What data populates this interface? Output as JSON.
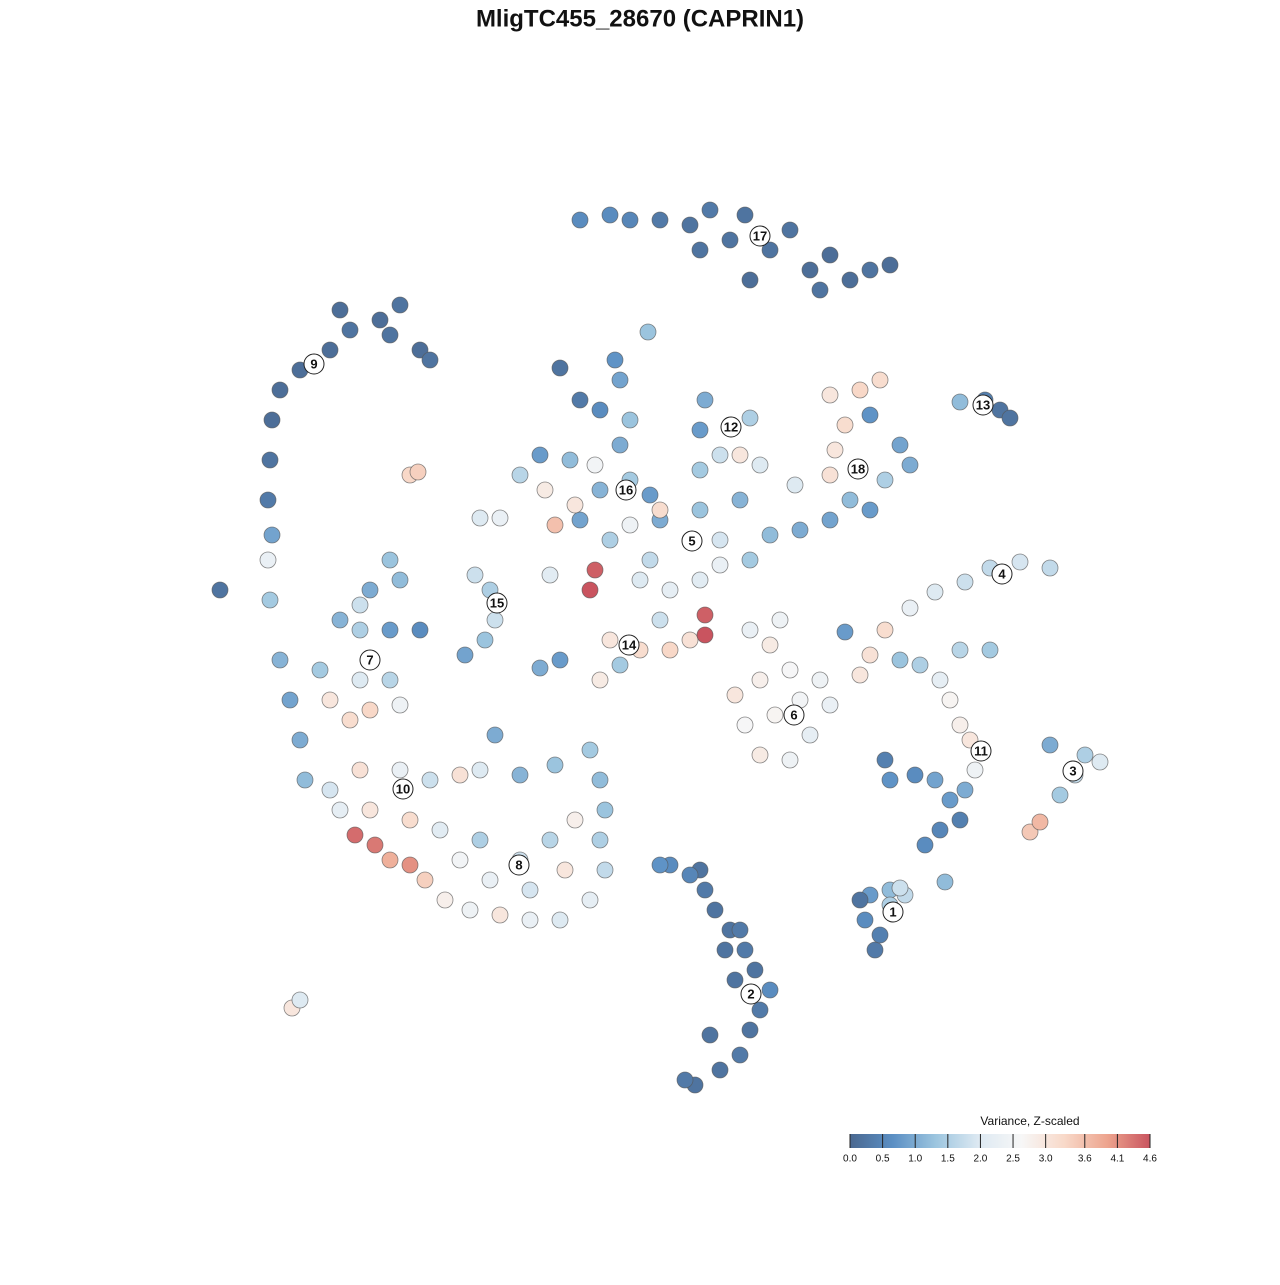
{
  "chart_data": {
    "type": "scatter",
    "title": "MligTC455_28670 (CAPRIN1)",
    "xlim": [
      0,
      1280
    ],
    "ylim": [
      1280,
      0
    ],
    "x": [
      695,
      720,
      740,
      750,
      760,
      770,
      755,
      745,
      730,
      715,
      705,
      700,
      670,
      685,
      710,
      735,
      740,
      725,
      690,
      660,
      875,
      880,
      865,
      870,
      890,
      905,
      860,
      945,
      890,
      900,
      925,
      940,
      960,
      950,
      935,
      915,
      890,
      885,
      965,
      975,
      970,
      960,
      950,
      940,
      920,
      900,
      960,
      990,
      1030,
      1040,
      1060,
      1075,
      1100,
      1050,
      1085,
      860,
      870,
      885,
      910,
      935,
      965,
      990,
      1020,
      1050,
      845,
      760,
      790,
      810,
      745,
      775,
      800,
      830,
      735,
      760,
      790,
      820,
      770,
      750,
      780,
      600,
      620,
      640,
      670,
      690,
      705,
      705,
      610,
      540,
      560,
      590,
      595,
      660,
      640,
      670,
      700,
      720,
      650,
      690,
      720,
      750,
      770,
      660,
      700,
      740,
      610,
      630,
      660,
      580,
      600,
      630,
      650,
      545,
      520,
      540,
      570,
      595,
      620,
      630,
      600,
      580,
      560,
      620,
      615,
      648,
      555,
      575,
      700,
      720,
      740,
      760,
      700,
      730,
      750,
      705,
      800,
      830,
      850,
      870,
      885,
      830,
      835,
      845,
      830,
      860,
      880,
      870,
      900,
      910,
      795,
      960,
      985,
      1000,
      1010,
      580,
      610,
      630,
      660,
      690,
      710,
      730,
      750,
      770,
      790,
      810,
      830,
      850,
      870,
      890,
      820,
      745,
      700,
      220,
      270,
      268,
      272,
      268,
      270,
      272,
      280,
      300,
      330,
      350,
      340,
      380,
      400,
      390,
      420,
      430,
      305,
      300,
      290,
      280,
      320,
      330,
      350,
      370,
      360,
      390,
      400,
      340,
      360,
      390,
      420,
      370,
      400,
      390,
      360,
      355,
      375,
      390,
      410,
      425,
      445,
      470,
      500,
      530,
      560,
      590,
      605,
      600,
      605,
      600,
      590,
      555,
      520,
      480,
      460,
      430,
      400,
      360,
      340,
      330,
      370,
      410,
      440,
      480,
      520,
      550,
      575,
      490,
      460,
      530,
      565,
      495,
      465,
      485,
      495,
      490,
      475,
      480,
      500,
      550,
      292,
      300,
      410,
      418
    ],
    "y": [
      195,
      210,
      225,
      250,
      270,
      290,
      310,
      330,
      350,
      370,
      390,
      410,
      415,
      200,
      245,
      300,
      350,
      330,
      405,
      415,
      330,
      345,
      360,
      385,
      390,
      385,
      380,
      398,
      375,
      392,
      435,
      450,
      460,
      480,
      500,
      505,
      500,
      520,
      490,
      510,
      540,
      555,
      580,
      600,
      615,
      620,
      630,
      630,
      448,
      458,
      485,
      505,
      518,
      535,
      525,
      605,
      625,
      650,
      672,
      688,
      698,
      712,
      718,
      712,
      648,
      525,
      520,
      545,
      555,
      565,
      580,
      575,
      585,
      600,
      610,
      600,
      635,
      650,
      660,
      600,
      615,
      630,
      630,
      640,
      645,
      665,
      640,
      612,
      620,
      690,
      710,
      660,
      700,
      690,
      700,
      715,
      720,
      740,
      740,
      720,
      745,
      760,
      770,
      780,
      740,
      755,
      770,
      760,
      790,
      800,
      785,
      790,
      805,
      825,
      820,
      815,
      835,
      860,
      870,
      880,
      912,
      900,
      920,
      948,
      755,
      775,
      810,
      825,
      825,
      815,
      850,
      855,
      862,
      880,
      750,
      760,
      780,
      770,
      800,
      805,
      830,
      855,
      885,
      890,
      900,
      865,
      835,
      815,
      795,
      878,
      880,
      870,
      862,
      1060,
      1065,
      1060,
      1060,
      1055,
      1070,
      1040,
      1000,
      1030,
      1050,
      1010,
      1025,
      1000,
      1010,
      1015,
      990,
      1065,
      1030,
      690,
      680,
      720,
      745,
      780,
      820,
      860,
      890,
      910,
      930,
      950,
      970,
      960,
      975,
      945,
      930,
      920,
      500,
      540,
      580,
      620,
      610,
      580,
      560,
      570,
      600,
      600,
      575,
      660,
      650,
      650,
      650,
      690,
      700,
      720,
      675,
      445,
      435,
      420,
      415,
      400,
      380,
      370,
      365,
      360,
      360,
      380,
      410,
      440,
      470,
      500,
      530,
      515,
      505,
      510,
      505,
      500,
      510,
      510,
      470,
      490,
      470,
      460,
      450,
      440,
      420,
      440,
      460,
      400,
      420,
      390,
      410,
      545,
      625,
      640,
      660,
      690,
      705,
      762,
      762,
      705,
      272,
      280,
      805,
      808
    ],
    "values": [
      0.2,
      0.2,
      0.3,
      0.2,
      0.3,
      0.6,
      0.2,
      0.3,
      0.2,
      0.2,
      0.3,
      0.2,
      0.6,
      0.3,
      0.2,
      0.2,
      0.3,
      0.2,
      0.5,
      0.7,
      0.3,
      0.4,
      0.6,
      0.8,
      1.2,
      1.7,
      0.2,
      1.2,
      1.5,
      1.8,
      0.6,
      0.5,
      0.4,
      0.8,
      0.9,
      0.6,
      0.7,
      0.4,
      1.0,
      2.4,
      3.0,
      2.8,
      2.7,
      2.2,
      1.5,
      1.3,
      1.6,
      1.4,
      3.5,
      3.7,
      1.4,
      1.7,
      2.0,
      1.0,
      1.5,
      3.0,
      3.1,
      3.2,
      2.3,
      2.0,
      1.8,
      1.7,
      1.9,
      1.7,
      0.8,
      2.9,
      2.4,
      2.2,
      2.6,
      2.7,
      2.5,
      2.3,
      3.0,
      2.8,
      2.6,
      2.4,
      2.9,
      2.3,
      2.4,
      2.9,
      1.4,
      3.2,
      3.3,
      3.1,
      4.6,
      4.5,
      3.0,
      1.0,
      0.8,
      4.6,
      4.5,
      1.8,
      2.0,
      2.2,
      2.1,
      2.3,
      1.7,
      1.6,
      1.9,
      1.4,
      1.2,
      1.0,
      1.3,
      1.1,
      1.5,
      2.4,
      3.2,
      0.9,
      1.1,
      1.4,
      0.8,
      2.9,
      1.6,
      0.8,
      1.2,
      2.5,
      1.0,
      1.3,
      0.6,
      0.3,
      0.2,
      0.9,
      0.7,
      1.3,
      3.6,
      3.0,
      1.4,
      1.8,
      3.0,
      2.0,
      0.8,
      1.1,
      1.5,
      1.0,
      1.0,
      0.9,
      1.2,
      0.8,
      1.5,
      3.1,
      3.0,
      3.2,
      3.0,
      3.3,
      3.2,
      0.7,
      0.9,
      1.0,
      2.0,
      1.2,
      0.4,
      0.2,
      0.2,
      0.6,
      0.6,
      0.5,
      0.3,
      0.2,
      0.3,
      0.2,
      0.1,
      0.2,
      0.2,
      0.1,
      0.1,
      0.1,
      0.2,
      0.1,
      0.2,
      0.2,
      0.2,
      0.2,
      1.4,
      2.3,
      0.9,
      0.3,
      0.2,
      0.1,
      0.1,
      0.1,
      0.1,
      0.2,
      0.1,
      0.1,
      0.2,
      0.2,
      0.1,
      0.2,
      1.2,
      1.0,
      0.9,
      1.1,
      1.4,
      3.0,
      3.2,
      3.3,
      2.0,
      1.6,
      2.4,
      1.1,
      1.5,
      0.8,
      0.6,
      1.0,
      1.2,
      1.3,
      1.8,
      4.4,
      4.3,
      3.8,
      4.1,
      3.4,
      2.8,
      2.4,
      3.0,
      2.3,
      2.0,
      2.2,
      1.7,
      1.5,
      1.3,
      1.2,
      1.4,
      1.3,
      1.1,
      2.0,
      3.1,
      1.8,
      2.3,
      3.1,
      2.2,
      1.9,
      3.0,
      3.2,
      2.1,
      1.5,
      1.8,
      1.6,
      2.8,
      2.3,
      2.5,
      1.9,
      3.0,
      1.0,
      0.9,
      1.3,
      1.8,
      1.5,
      1.8,
      2.0,
      2.3,
      2.1,
      3.0,
      2.0,
      3.3,
      3.4
    ],
    "clusters": [
      {
        "label": "1",
        "x": 893,
        "y": 368
      },
      {
        "label": "2",
        "x": 751,
        "y": 286
      },
      {
        "label": "3",
        "x": 1073,
        "y": 509
      },
      {
        "label": "4",
        "x": 1002,
        "y": 706
      },
      {
        "label": "5",
        "x": 692,
        "y": 739
      },
      {
        "label": "6",
        "x": 794,
        "y": 565
      },
      {
        "label": "7",
        "x": 370,
        "y": 620
      },
      {
        "label": "8",
        "x": 519,
        "y": 415
      },
      {
        "label": "9",
        "x": 314,
        "y": 916
      },
      {
        "label": "10",
        "x": 403,
        "y": 491
      },
      {
        "label": "11",
        "x": 981,
        "y": 529
      },
      {
        "label": "12",
        "x": 731,
        "y": 853
      },
      {
        "label": "13",
        "x": 983,
        "y": 875
      },
      {
        "label": "14",
        "x": 629,
        "y": 635
      },
      {
        "label": "15",
        "x": 497,
        "y": 677
      },
      {
        "label": "16",
        "x": 626,
        "y": 790
      },
      {
        "label": "17",
        "x": 760,
        "y": 1044
      },
      {
        "label": "18",
        "x": 858,
        "y": 811
      }
    ],
    "colorbar": {
      "title": "Variance, Z-scaled",
      "colors": [
        "#4a6890",
        "#5b8fc4",
        "#9cc5df",
        "#dde9f2",
        "#f7f7f7",
        "#f8d9c9",
        "#eda48e",
        "#c9545f"
      ],
      "clim": [
        0,
        4.6
      ],
      "ticks": [
        {
          "value": 0,
          "label": "0.0"
        },
        0.5,
        {
          "value": 1,
          "label": "1.0"
        },
        1.5,
        {
          "value": 2,
          "label": "2.0"
        },
        2.5,
        {
          "value": 3,
          "label": "3.0"
        },
        3.6,
        4.1,
        4.6
      ]
    }
  }
}
